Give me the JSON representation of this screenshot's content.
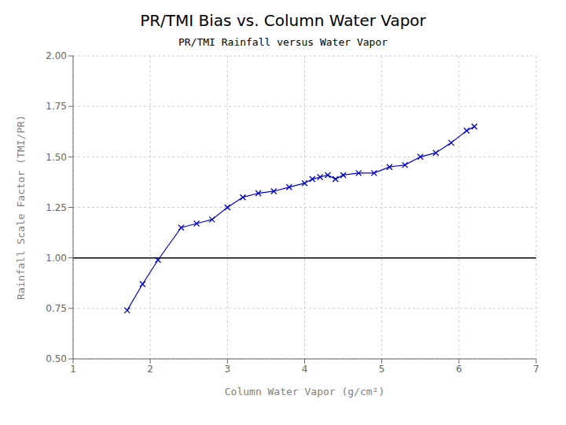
{
  "chart_data": {
    "type": "line",
    "title": "PR/TMI Bias vs. Column Water Vapor",
    "subtitle": "PR/TMI Rainfall versus Water Vapor",
    "xlabel": "Column Water Vapor (g/cm²)",
    "ylabel": "Rainfall Scale Factor (TMI/PR)",
    "x": [
      1.7,
      1.9,
      2.1,
      2.4,
      2.6,
      2.8,
      3.0,
      3.2,
      3.4,
      3.6,
      3.8,
      4.0,
      4.1,
      4.2,
      4.3,
      4.4,
      4.5,
      4.7,
      4.9,
      5.1,
      5.3,
      5.5,
      5.7,
      5.9,
      6.1,
      6.2
    ],
    "values": [
      0.74,
      0.87,
      0.99,
      1.15,
      1.17,
      1.19,
      1.25,
      1.3,
      1.32,
      1.33,
      1.35,
      1.37,
      1.39,
      1.4,
      1.41,
      1.39,
      1.41,
      1.42,
      1.42,
      1.45,
      1.46,
      1.5,
      1.52,
      1.57,
      1.63,
      1.65
    ],
    "color": "#0000cc",
    "marker": "x",
    "xlim": [
      1,
      7
    ],
    "ylim": [
      0.5,
      2.0
    ],
    "xticks": [
      1,
      2,
      3,
      4,
      5,
      6,
      7
    ],
    "yticks": [
      {
        "value": 0.5,
        "label": "0.50"
      },
      {
        "value": 0.75,
        "label": "0.75"
      },
      {
        "value": 1.0,
        "label": "1.00"
      },
      {
        "value": 1.25,
        "label": "1.25"
      },
      {
        "value": 1.5,
        "label": "1.50"
      },
      {
        "value": 1.75,
        "label": "1.75"
      },
      {
        "value": 2.0,
        "label": "2.00"
      }
    ],
    "reference_lines": [
      {
        "y": 1.0,
        "color": "#000000"
      }
    ],
    "grid": true
  }
}
